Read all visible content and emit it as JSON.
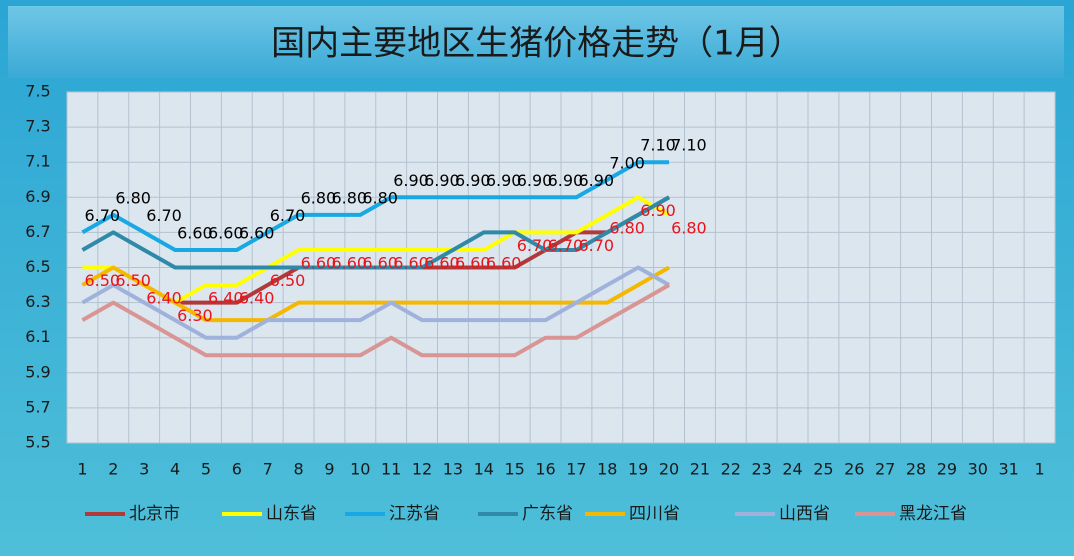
{
  "chart_data": {
    "type": "line",
    "title": "国内主要地区生猪价格走势（1月）",
    "categories": [
      "1",
      "2",
      "3",
      "4",
      "5",
      "6",
      "7",
      "8",
      "9",
      "10",
      "11",
      "12",
      "13",
      "14",
      "15",
      "16",
      "17",
      "18",
      "19",
      "20",
      "21",
      "22",
      "23",
      "24",
      "25",
      "26",
      "27",
      "28",
      "29",
      "30",
      "31",
      "1"
    ],
    "ylim": [
      5.5,
      7.5
    ],
    "yticks": [
      5.5,
      5.7,
      5.9,
      6.1,
      6.3,
      6.5,
      6.7,
      6.9,
      7.1,
      7.3,
      7.5
    ],
    "grid": true,
    "legend": "bottom",
    "series": [
      {
        "name": "北京市",
        "color": "#b03a3a",
        "values": [
          null,
          null,
          null,
          6.3,
          6.3,
          6.3,
          6.4,
          6.5,
          6.5,
          6.5,
          6.5,
          6.5,
          6.5,
          6.5,
          6.5,
          6.6,
          6.7,
          6.7,
          6.8,
          6.9,
          null,
          null,
          null,
          null,
          null,
          null,
          null,
          null,
          null,
          null,
          null,
          null
        ]
      },
      {
        "name": "山东省",
        "color": "#ffff00",
        "values": [
          6.5,
          6.5,
          6.4,
          6.3,
          6.4,
          6.4,
          6.5,
          6.6,
          6.6,
          6.6,
          6.6,
          6.6,
          6.6,
          6.6,
          6.7,
          6.7,
          6.7,
          6.8,
          6.9,
          6.8,
          null,
          null,
          null,
          null,
          null,
          null,
          null,
          null,
          null,
          null,
          null,
          null
        ],
        "label_color": "#e8141b",
        "value_labels": [
          "6.50",
          "6.50",
          "6.40",
          "6.30",
          "6.40",
          "6.40",
          "6.50",
          "6.60",
          "6.60",
          "6.60",
          "6.60",
          "6.60",
          "6.60",
          "6.60",
          "6.70",
          "6.70",
          "6.70",
          "6.80",
          "6.90",
          "6.80",
          null,
          null,
          null,
          null,
          null,
          null,
          null,
          null,
          null,
          null,
          null,
          null
        ]
      },
      {
        "name": "江苏省",
        "color": "#18a8e4",
        "values": [
          6.7,
          6.8,
          6.7,
          6.6,
          6.6,
          6.6,
          6.7,
          6.8,
          6.8,
          6.8,
          6.9,
          6.9,
          6.9,
          6.9,
          6.9,
          6.9,
          6.9,
          7.0,
          7.1,
          7.1,
          null,
          null,
          null,
          null,
          null,
          null,
          null,
          null,
          null,
          null,
          null,
          null
        ],
        "label_color": "#000000",
        "value_labels": [
          "6.70",
          "6.80",
          "6.70",
          "6.60",
          "6.60",
          "6.60",
          "6.70",
          "6.80",
          "6.80",
          "6.80",
          "6.90",
          "6.90",
          "6.90",
          "6.90",
          "6.90",
          "6.90",
          "6.90",
          "7.00",
          "7.10",
          "7.10",
          null,
          null,
          null,
          null,
          null,
          null,
          null,
          null,
          null,
          null,
          null,
          null
        ]
      },
      {
        "name": "广东省",
        "color": "#2e8aa8",
        "values": [
          6.6,
          6.7,
          6.6,
          6.5,
          6.5,
          6.5,
          6.5,
          6.5,
          6.5,
          6.5,
          6.5,
          6.5,
          6.6,
          6.7,
          6.7,
          6.6,
          6.6,
          6.7,
          6.8,
          6.9,
          null,
          null,
          null,
          null,
          null,
          null,
          null,
          null,
          null,
          null,
          null,
          null
        ]
      },
      {
        "name": "四川省",
        "color": "#f5b800",
        "values": [
          6.4,
          6.5,
          6.4,
          6.3,
          6.2,
          6.2,
          6.2,
          6.3,
          6.3,
          6.3,
          6.3,
          6.3,
          6.3,
          6.3,
          6.3,
          6.3,
          6.3,
          6.3,
          6.4,
          6.5,
          null,
          null,
          null,
          null,
          null,
          null,
          null,
          null,
          null,
          null,
          null,
          null
        ]
      },
      {
        "name": "山西省",
        "color": "#9fb2dc",
        "values": [
          6.3,
          6.4,
          6.3,
          6.2,
          6.1,
          6.1,
          6.2,
          6.2,
          6.2,
          6.2,
          6.3,
          6.2,
          6.2,
          6.2,
          6.2,
          6.2,
          6.3,
          6.4,
          6.5,
          6.4,
          null,
          null,
          null,
          null,
          null,
          null,
          null,
          null,
          null,
          null,
          null,
          null
        ]
      },
      {
        "name": "黑龙江省",
        "color": "#d99494",
        "values": [
          6.2,
          6.3,
          6.2,
          6.1,
          6.0,
          6.0,
          6.0,
          6.0,
          6.0,
          6.0,
          6.1,
          6.0,
          6.0,
          6.0,
          6.0,
          6.1,
          6.1,
          6.2,
          6.3,
          6.4,
          null,
          null,
          null,
          null,
          null,
          null,
          null,
          null,
          null,
          null,
          null,
          null
        ]
      }
    ]
  }
}
